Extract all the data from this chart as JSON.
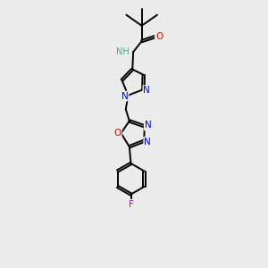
{
  "background_color": "#ebebeb",
  "atom_colors": {
    "C": "#000000",
    "N": "#0000ee",
    "O": "#ee0000",
    "F": "#cc00cc",
    "H": "#4aaa88"
  },
  "bond_color": "#000000",
  "bond_width": 1.4
}
